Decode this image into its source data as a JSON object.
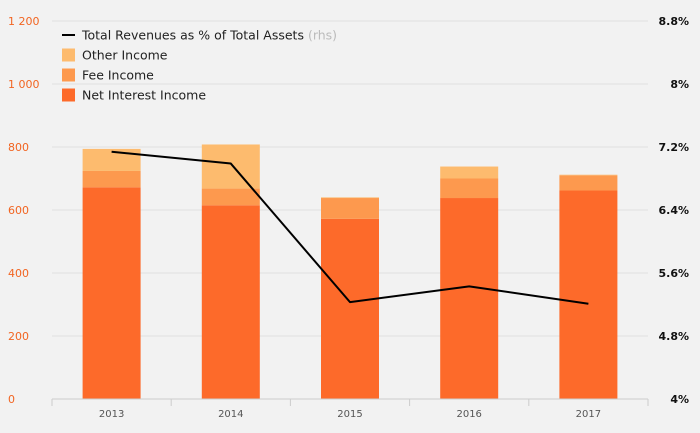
{
  "chart_data": {
    "type": "bar",
    "stacked": true,
    "categories": [
      "2013",
      "2014",
      "2015",
      "2016",
      "2017"
    ],
    "series": [
      {
        "name": "Net Interest Income",
        "values": [
          672,
          615,
          572,
          638,
          662
        ],
        "color": "#fd6a2a"
      },
      {
        "name": "Fee Income",
        "values": [
          52,
          53,
          66,
          62,
          48
        ],
        "color": "#fd994e"
      },
      {
        "name": "Other Income",
        "values": [
          70,
          140,
          2,
          38,
          2
        ],
        "color": "#fdbb6e"
      }
    ],
    "line_series": {
      "name": "Total Revenues as % of Total Assets",
      "name_suffix": "(rhs)",
      "values": [
        7.14,
        6.99,
        5.23,
        5.43,
        5.21
      ],
      "color": "#000000",
      "axis": "right"
    },
    "y_left": {
      "ylim": [
        0,
        1200
      ],
      "ticks": [
        0,
        200,
        400,
        600,
        800,
        1000,
        1200
      ],
      "tick_labels": [
        "0",
        "200",
        "400",
        "600",
        "800",
        "1 000",
        "1 200"
      ]
    },
    "y_right": {
      "ylim": [
        4,
        8.8
      ],
      "ticks": [
        4,
        4.8,
        5.6,
        6.4,
        7.2,
        8,
        8.8
      ],
      "tick_labels": [
        "4%",
        "4.8%",
        "5.6%",
        "6.4%",
        "7.2%",
        "8%",
        "8.8%"
      ]
    },
    "legend_placement": "top-left",
    "grid": "horizontal",
    "title": "",
    "xlabel": "",
    "ylabel": ""
  }
}
